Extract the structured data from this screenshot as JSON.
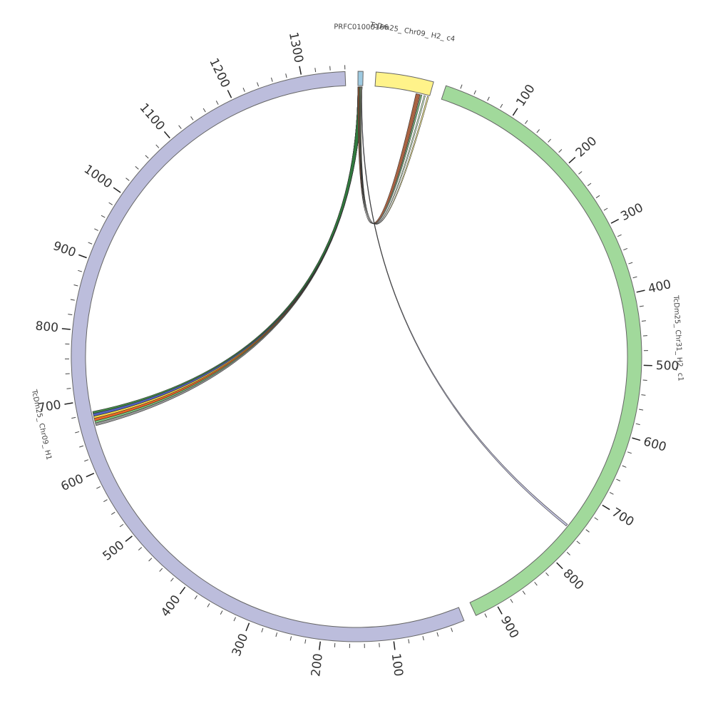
{
  "chart_data": {
    "type": "circos",
    "minor_tick_interval": 20,
    "segments": [
      {
        "name": "PRFC01000166",
        "length": 7,
        "color": "#9ecae1",
        "ticks": []
      },
      {
        "name": "TcDm25_ Chr09_ H2_ c4",
        "length": 80,
        "color": "#fff38a",
        "ticks": []
      },
      {
        "name": "TcDm25_ Chr31_ H2_ c1",
        "length": 932,
        "color": "#a1d99b",
        "ticks": [
          100,
          200,
          300,
          400,
          500,
          600,
          700,
          800,
          900
        ]
      },
      {
        "name": "TcDm25_ Chr09_ H1",
        "length": 1360,
        "color": "#bcbddc",
        "ticks": [
          100,
          200,
          300,
          400,
          500,
          600,
          700,
          800,
          900,
          1000,
          1100,
          1200,
          1300
        ]
      }
    ],
    "links": [
      {
        "source": 0,
        "source_start": 0,
        "source_end": 6,
        "target": 3,
        "target_start": 662,
        "target_end": 666,
        "color": "#8c8c8c"
      },
      {
        "source": 0,
        "source_start": 0,
        "source_end": 6,
        "target": 3,
        "target_start": 666,
        "target_end": 669,
        "color": "#74c476"
      },
      {
        "source": 0,
        "source_start": 0,
        "source_end": 6,
        "target": 3,
        "target_start": 669,
        "target_end": 673,
        "color": "#e6550d"
      },
      {
        "source": 0,
        "source_start": 0,
        "source_end": 6,
        "target": 3,
        "target_start": 673,
        "target_end": 676,
        "color": "#fdd835"
      },
      {
        "source": 0,
        "source_start": 0,
        "source_end": 6,
        "target": 3,
        "target_start": 676,
        "target_end": 680,
        "color": "#3f51b5"
      },
      {
        "source": 0,
        "source_start": 0,
        "source_end": 6,
        "target": 3,
        "target_start": 680,
        "target_end": 683,
        "color": "#2e7d32"
      },
      {
        "source": 1,
        "source_start": 60,
        "source_end": 66,
        "target": 0,
        "target_start": 0,
        "target_end": 2,
        "color": "#a0522d"
      },
      {
        "source": 1,
        "source_start": 67,
        "source_end": 69,
        "target": 0,
        "target_start": 2,
        "target_end": 3,
        "color": "#74c476"
      },
      {
        "source": 1,
        "source_start": 72,
        "source_end": 74,
        "target": 0,
        "target_start": 3,
        "target_end": 4,
        "color": "#c7e9c0"
      },
      {
        "source": 1,
        "source_start": 77,
        "source_end": 79,
        "target": 0,
        "target_start": 4,
        "target_end": 5,
        "color": "#f0e68c"
      },
      {
        "source": 0,
        "source_start": 5,
        "source_end": 6,
        "target": 2,
        "target_start": 750,
        "target_end": 753,
        "color": "#bcbddc"
      }
    ]
  }
}
